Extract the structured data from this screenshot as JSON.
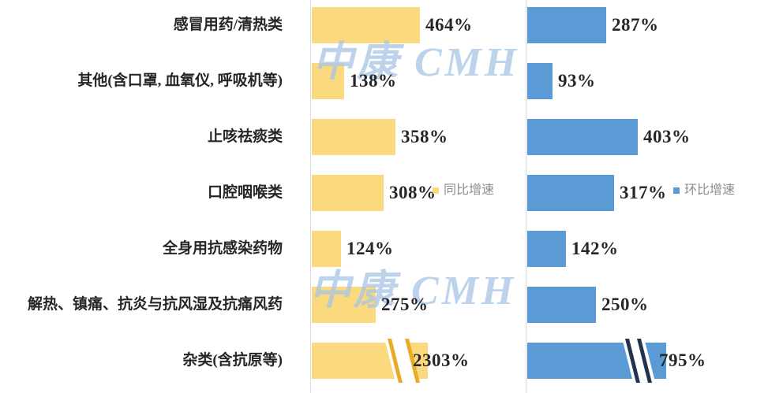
{
  "watermark": {
    "text": "中康 CMH",
    "color": "#A7C4E5"
  },
  "legend": [
    {
      "id": "yoy",
      "label": "同比增速",
      "color": "#FBD97E"
    },
    {
      "id": "mom",
      "label": "环比增速",
      "color": "#5B9BD5"
    }
  ],
  "chart_data": {
    "type": "bar",
    "orientation": "horizontal",
    "unit": "%",
    "title": "",
    "categories": [
      "感冒用药/清热类",
      "其他(含口罩, 血氧仪, 呼吸机等)",
      "止咳祛痰类",
      "口腔咽喉类",
      "全身用抗感染药物",
      "解热、镇痛、抗炎与抗风湿及抗痛风药",
      "杂类(含抗原等)"
    ],
    "series": [
      {
        "name": "同比增速",
        "color": "#FBD97E",
        "break_color": "#E8AC28",
        "values": [
          464,
          138,
          358,
          308,
          124,
          275,
          2303
        ],
        "truncated": [
          false,
          false,
          false,
          false,
          false,
          false,
          true
        ]
      },
      {
        "name": "环比增速",
        "color": "#5B9BD5",
        "break_color": "#20334F",
        "values": [
          287,
          93,
          403,
          317,
          142,
          250,
          795
        ],
        "truncated": [
          false,
          false,
          false,
          false,
          false,
          false,
          true
        ]
      }
    ],
    "axis_break": true,
    "legend_position": "middle-right-of-each-panel",
    "grid": false
  }
}
